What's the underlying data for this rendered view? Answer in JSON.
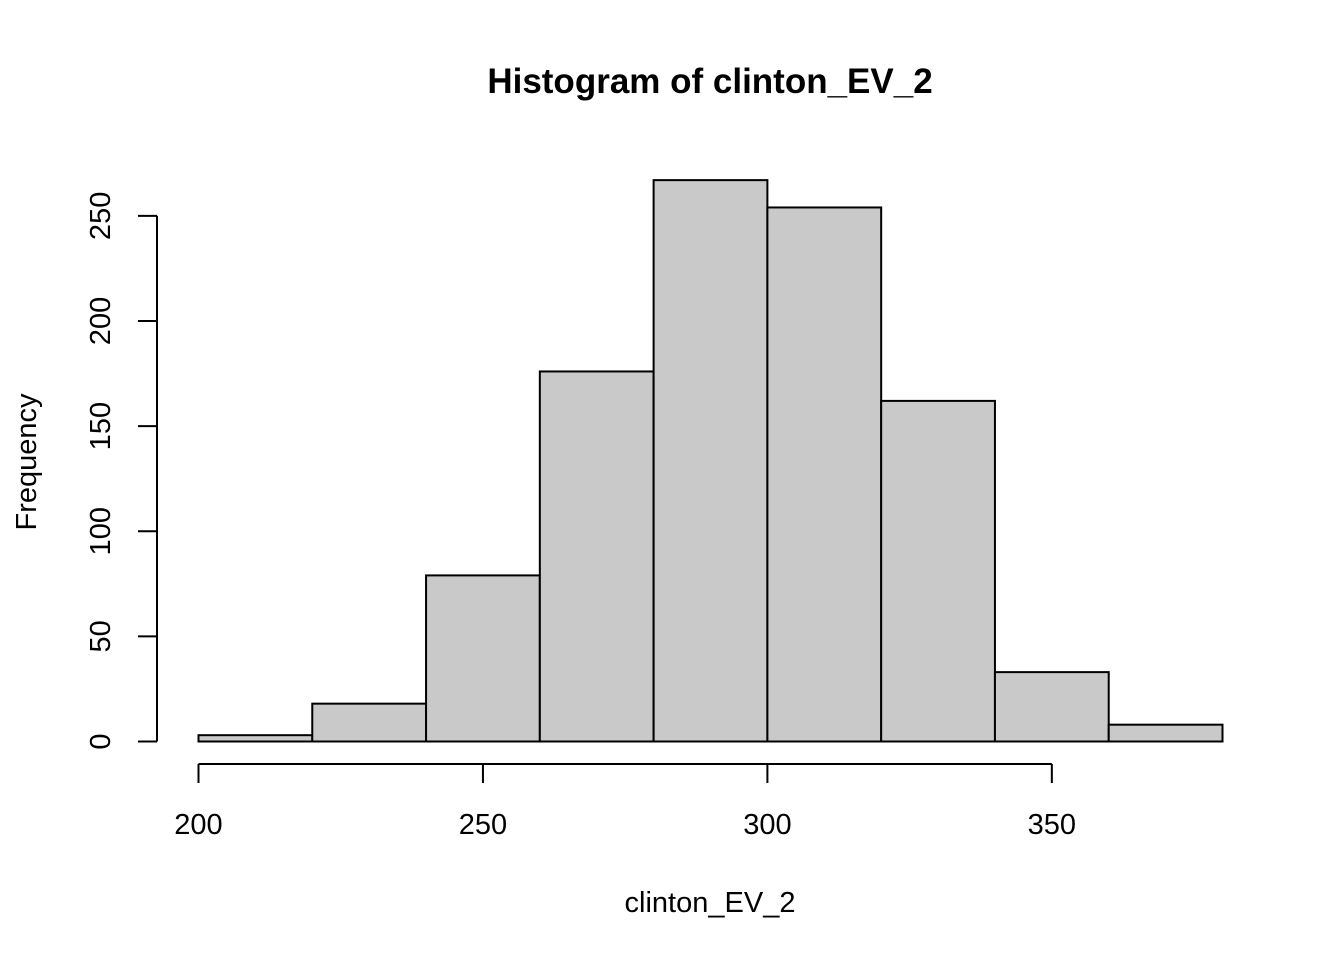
{
  "chart_data": {
    "type": "bar",
    "title": "Histogram of clinton_EV_2",
    "xlabel": "clinton_EV_2",
    "ylabel": "Frequency",
    "bin_edges": [
      200,
      220,
      240,
      260,
      280,
      300,
      320,
      340,
      360,
      380
    ],
    "values": [
      3,
      18,
      79,
      176,
      267,
      254,
      162,
      33,
      8
    ],
    "xticks": [
      200,
      250,
      300,
      350
    ],
    "yticks": [
      0,
      50,
      100,
      150,
      200,
      250
    ],
    "xlim": [
      200,
      380
    ],
    "ylim": [
      0,
      267
    ],
    "grid": false,
    "bar_color": "#c9c9c9",
    "edge_color": "#000000"
  }
}
